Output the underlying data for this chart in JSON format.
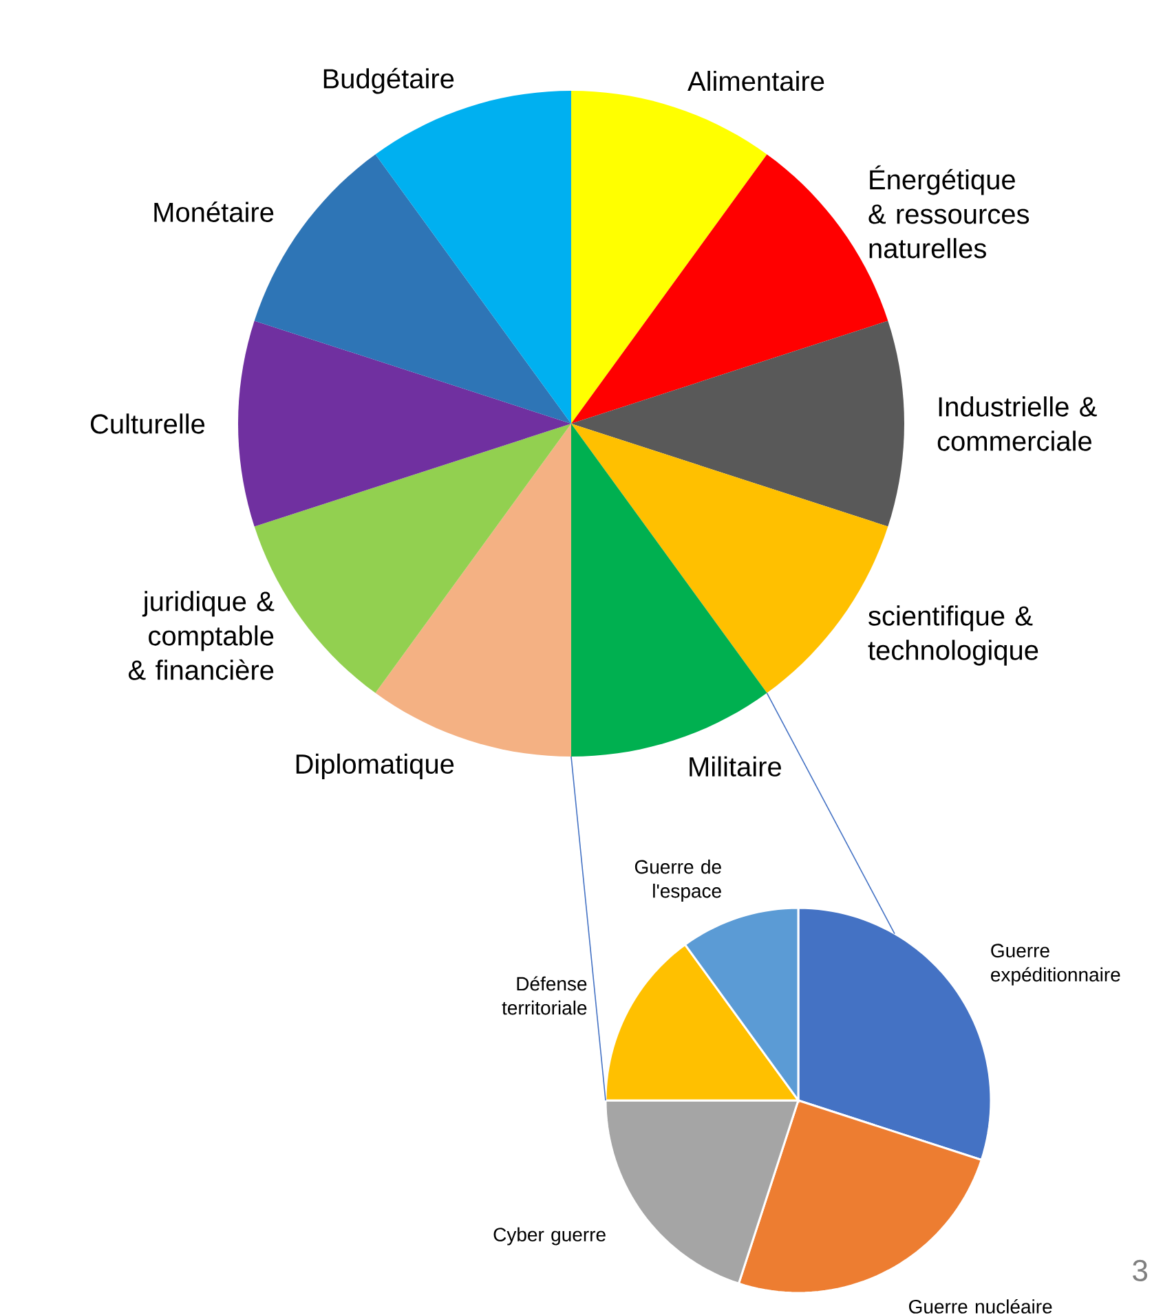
{
  "chart_data": [
    {
      "type": "pie",
      "categories": [
        "Alimentaire",
        "Énergétique & ressources naturelles",
        "Industrielle & commerciale",
        "scientifique & technologique",
        "Militaire",
        "Diplomatique",
        "juridique & comptable & financière",
        "Culturelle",
        "Monétaire",
        "Budgétaire"
      ],
      "values": [
        10,
        10,
        10,
        10,
        10,
        10,
        10,
        10,
        10,
        10
      ],
      "colors": [
        "#ffff00",
        "#ff0000",
        "#595959",
        "#ffc000",
        "#00b050",
        "#f4b183",
        "#92d050",
        "#7030a0",
        "#2e75b6",
        "#00b0f0"
      ]
    },
    {
      "type": "pie",
      "categories": [
        "Guerre expéditionnaire",
        "Guerre nucléaire",
        "Cyber guerre",
        "Défense territoriale",
        "Guerre de l'espace"
      ],
      "values": [
        30,
        25,
        20,
        15,
        10
      ],
      "colors": [
        "#4472c4",
        "#ed7d31",
        "#a5a5a5",
        "#ffc000",
        "#5b9bd5"
      ],
      "annotations": [
        "3"
      ]
    }
  ]
}
